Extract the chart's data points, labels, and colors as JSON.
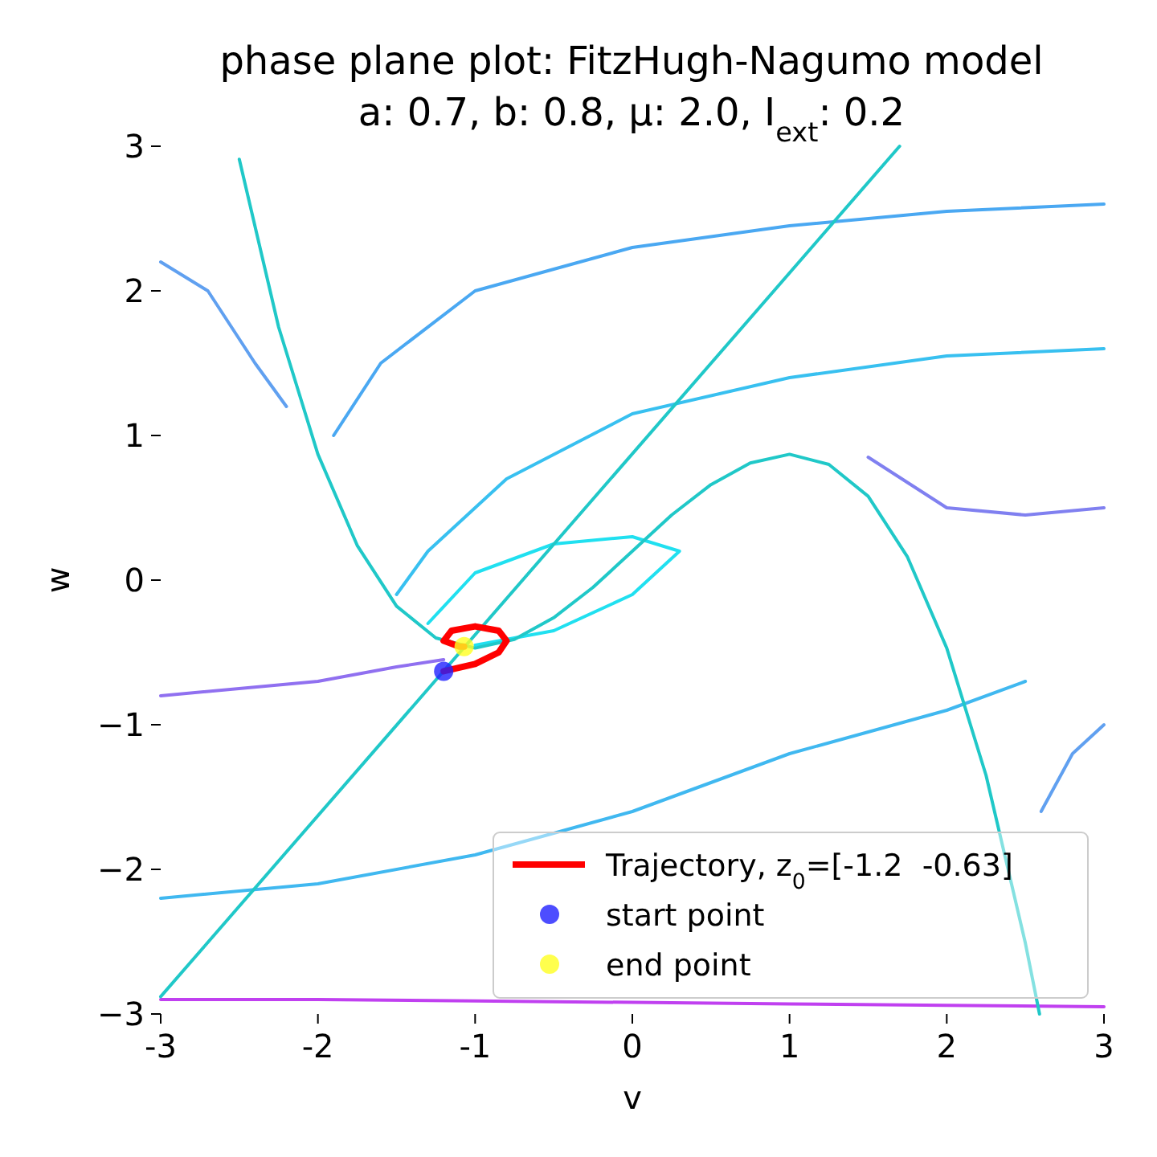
{
  "chart_data": {
    "type": "line",
    "title": "phase plane plot: FitzHugh-Nagumo model",
    "subtitle": "a: 0.7, b: 0.8, μ: 2.0, I$_{ext}$: 0.2",
    "xlabel": "v",
    "ylabel": "w",
    "xlim": [
      -3,
      3
    ],
    "ylim": [
      -3,
      3
    ],
    "xticks": [
      -3,
      -2,
      -1,
      0,
      1,
      2,
      3
    ],
    "yticks": [
      {
        "value": -3,
        "label": "−3"
      },
      {
        "value": -2,
        "label": "−2"
      },
      {
        "value": -1,
        "label": "−1"
      },
      0,
      1,
      2,
      3
    ],
    "grid": false,
    "legend": "bottom right",
    "series": [
      {
        "color": "#4aa8f2",
        "x": [
          3,
          2,
          1,
          0,
          -1,
          -1.6,
          -1.9
        ],
        "values": [
          2.6,
          2.55,
          2.45,
          2.3,
          2.0,
          1.5,
          1.0
        ]
      },
      {
        "color": "#38c0f0",
        "x": [
          3,
          2,
          1,
          0,
          -0.8,
          -1.3,
          -1.5
        ],
        "values": [
          1.6,
          1.55,
          1.4,
          1.15,
          0.7,
          0.2,
          -0.1
        ]
      },
      {
        "color": "#9070f0",
        "x": [
          -3,
          -2,
          -1.5,
          -1.2
        ],
        "values": [
          -0.8,
          -0.7,
          -0.6,
          -0.55
        ]
      },
      {
        "color": "#20e0f0",
        "x": [
          -1.3,
          -1,
          -0.5,
          0,
          0.3,
          0,
          -0.5,
          -1
        ],
        "values": [
          -0.3,
          0.05,
          0.25,
          0.3,
          0.2,
          -0.1,
          -0.35,
          -0.45
        ]
      },
      {
        "color": "#40b8f0",
        "x": [
          -3,
          -2,
          -1,
          0,
          1,
          2,
          2.5
        ],
        "values": [
          -2.2,
          -2.1,
          -1.9,
          -1.6,
          -1.2,
          -0.9,
          -0.7
        ]
      },
      {
        "color": "#c040f0",
        "x": [
          -3,
          -2,
          -1,
          0,
          1,
          2,
          3
        ],
        "values": [
          -2.9,
          -2.9,
          -2.91,
          -2.92,
          -2.93,
          -2.94,
          -2.95
        ]
      },
      {
        "color": "#60a0f0",
        "x": [
          -3,
          -2.7,
          -2.4,
          -2.2
        ],
        "values": [
          2.2,
          2.0,
          1.5,
          1.2
        ]
      },
      {
        "color": "#60a0f0",
        "x": [
          3,
          2.8,
          2.6
        ],
        "values": [
          -1.0,
          -1.2,
          -1.6
        ]
      },
      {
        "color": "#8080f0",
        "x": [
          3,
          2.5,
          2,
          1.5
        ],
        "values": [
          0.5,
          0.45,
          0.5,
          0.85
        ]
      },
      {
        "color": "#20c8c8",
        "x": [
          -2.5,
          -2.25,
          -2,
          -1.75,
          -1.5,
          -1.25,
          -1,
          -0.75,
          -0.5,
          -0.25,
          0,
          0.25,
          0.5,
          0.75,
          1,
          1.25,
          1.5,
          1.75,
          2,
          2.25,
          2.5,
          2.59
        ],
        "values": [
          2.91,
          1.75,
          0.87,
          0.24,
          -0.18,
          -0.4,
          -0.47,
          -0.41,
          -0.26,
          -0.05,
          0.2,
          0.45,
          0.66,
          0.81,
          0.87,
          0.8,
          0.58,
          0.16,
          -0.47,
          -1.35,
          -2.51,
          -3.0
        ]
      },
      {
        "color": "#20c8c8",
        "x": [
          -3,
          1.7
        ],
        "values": [
          -2.88,
          3.0
        ]
      },
      {
        "name": "Trajectory, z$_{0}$=[-1.2  -0.63]",
        "color": "#ff0000",
        "x": [
          -1.2,
          -1.0,
          -0.85,
          -0.8,
          -0.85,
          -1.0,
          -1.15,
          -1.2,
          -1.1,
          -1.07
        ],
        "values": [
          -0.63,
          -0.58,
          -0.5,
          -0.42,
          -0.35,
          -0.32,
          -0.35,
          -0.42,
          -0.46,
          -0.46
        ]
      },
      {
        "name": "start point",
        "type": "scatter",
        "color": "#2020ff",
        "x": [
          -1.2
        ],
        "values": [
          -0.63
        ]
      },
      {
        "name": "end point",
        "type": "scatter",
        "color": "#ffff20",
        "x": [
          -1.07
        ],
        "values": [
          -0.46
        ]
      }
    ]
  }
}
